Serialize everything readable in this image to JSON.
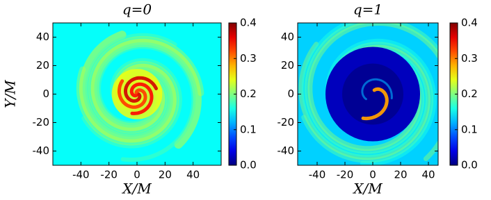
{
  "chart_data": [
    {
      "type": "heatmap",
      "title": "q=0",
      "xlabel": "X/M",
      "ylabel": "Y/M",
      "xlim": [
        -60,
        60
      ],
      "ylim": [
        -50,
        50
      ],
      "xticks": [
        -40,
        -20,
        0,
        20,
        40
      ],
      "yticks": [
        -40,
        -20,
        0,
        20,
        40
      ],
      "colormap": "jet",
      "clim": [
        0,
        0.4
      ],
      "cticks": [
        {
          "value": 0,
          "label": "0.0"
        },
        0.1,
        0.2,
        0.3,
        0.4
      ]
    },
    {
      "type": "heatmap",
      "title": "q=1",
      "xlabel": "X/M",
      "xlim": [
        -54,
        47
      ],
      "ylim": [
        -50,
        50
      ],
      "xticks": [
        -40,
        -20,
        0,
        20,
        40
      ],
      "yticks": [
        -40,
        -20,
        0,
        20,
        40
      ],
      "colormap": "jet",
      "clim": [
        0,
        0.4
      ],
      "cticks": [
        {
          "value": 0,
          "label": "0.0"
        },
        0.1,
        0.2,
        0.3,
        0.4
      ]
    }
  ]
}
